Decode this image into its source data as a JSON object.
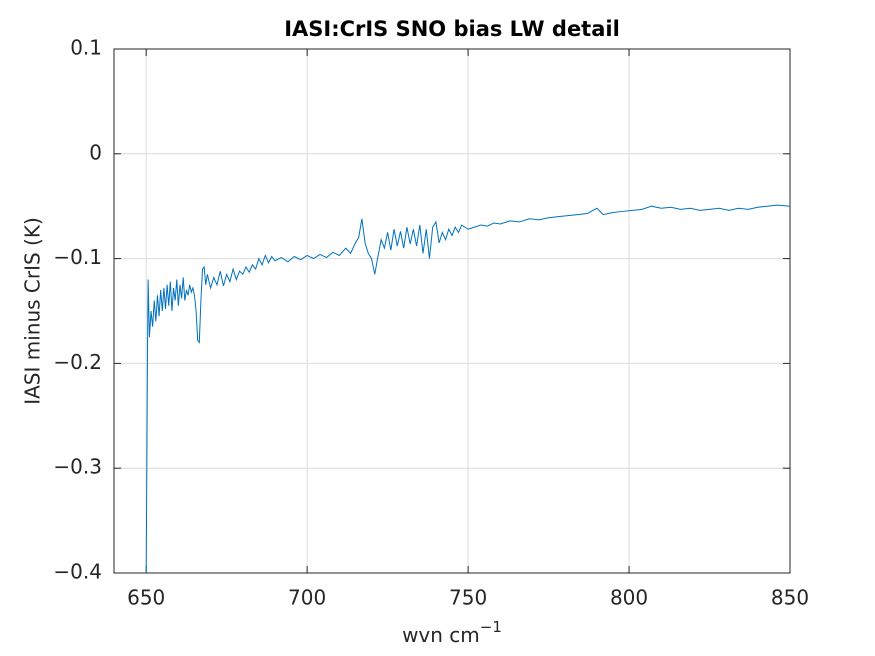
{
  "chart_data": {
    "type": "line",
    "title": "IASI:CrIS SNO bias LW detail",
    "xlabel": "wvn cm",
    "xlabel_superscript": "−1",
    "ylabel": "IASI minus CrIS (K)",
    "xlim": [
      640,
      850
    ],
    "ylim": [
      -0.4,
      0.1
    ],
    "xticks": [
      650,
      700,
      750,
      800,
      850
    ],
    "yticks": [
      {
        "value": -0.4,
        "label": "−0.4"
      },
      {
        "value": -0.3,
        "label": "−0.3"
      },
      {
        "value": -0.2,
        "label": "−0.2"
      },
      {
        "value": -0.1,
        "label": "−0.1"
      },
      0,
      0.1
    ],
    "grid": true,
    "series": [
      {
        "color": "#0072bd",
        "x": [
          650.0,
          650.2,
          650.4,
          650.6,
          651.0,
          651.5,
          652.0,
          652.5,
          653.0,
          653.5,
          654.0,
          654.5,
          655.0,
          655.5,
          656.0,
          656.5,
          657.0,
          657.5,
          658.0,
          658.5,
          659.0,
          659.5,
          660.0,
          660.5,
          661.0,
          661.5,
          662.0,
          662.5,
          663.0,
          663.5,
          664.0,
          664.5,
          665.0,
          665.5,
          666.0,
          666.5,
          667.0,
          667.5,
          668.0,
          668.5,
          669.0,
          670.0,
          671.0,
          672.0,
          673.0,
          674.0,
          675.0,
          676.0,
          677.0,
          678.0,
          679.0,
          680.0,
          681.0,
          682.0,
          683.0,
          684.0,
          685.0,
          686.0,
          687.0,
          688.0,
          689.0,
          690.0,
          692.0,
          694.0,
          696.0,
          698.0,
          700.0,
          702.0,
          704.0,
          706.0,
          708.0,
          710.0,
          712.0,
          713.5,
          715.0,
          716.0,
          717.0,
          718.0,
          719.0,
          720.0,
          721.0,
          722.0,
          723.0,
          724.0,
          725.0,
          726.0,
          727.0,
          728.0,
          729.0,
          730.0,
          731.0,
          732.0,
          733.0,
          734.0,
          735.0,
          736.0,
          737.0,
          738.0,
          739.0,
          740.0,
          741.0,
          742.0,
          743.0,
          744.0,
          745.0,
          746.0,
          747.0,
          748.0,
          750.0,
          752.0,
          754.0,
          756.0,
          758.0,
          760.0,
          763.0,
          766.0,
          769.0,
          772.0,
          775.0,
          778.0,
          781.0,
          784.0,
          787.0,
          790.0,
          792.0,
          795.0,
          798.0,
          801.0,
          804.0,
          807.0,
          810.0,
          813.0,
          816.0,
          819.0,
          822.0,
          825.0,
          828.0,
          831.0,
          834.0,
          837.0,
          840.0,
          843.0,
          846.0,
          850.0
        ],
        "values": [
          -0.4,
          -0.3,
          -0.19,
          -0.12,
          -0.175,
          -0.15,
          -0.165,
          -0.14,
          -0.16,
          -0.135,
          -0.155,
          -0.13,
          -0.15,
          -0.128,
          -0.148,
          -0.125,
          -0.145,
          -0.122,
          -0.15,
          -0.128,
          -0.14,
          -0.12,
          -0.145,
          -0.125,
          -0.138,
          -0.118,
          -0.14,
          -0.13,
          -0.135,
          -0.125,
          -0.132,
          -0.128,
          -0.135,
          -0.15,
          -0.178,
          -0.18,
          -0.14,
          -0.11,
          -0.108,
          -0.125,
          -0.115,
          -0.128,
          -0.118,
          -0.125,
          -0.112,
          -0.126,
          -0.115,
          -0.122,
          -0.11,
          -0.12,
          -0.112,
          -0.115,
          -0.108,
          -0.113,
          -0.106,
          -0.11,
          -0.1,
          -0.106,
          -0.097,
          -0.104,
          -0.098,
          -0.102,
          -0.099,
          -0.103,
          -0.098,
          -0.101,
          -0.097,
          -0.1,
          -0.096,
          -0.099,
          -0.094,
          -0.097,
          -0.09,
          -0.095,
          -0.085,
          -0.08,
          -0.062,
          -0.085,
          -0.095,
          -0.1,
          -0.115,
          -0.098,
          -0.082,
          -0.09,
          -0.075,
          -0.092,
          -0.072,
          -0.088,
          -0.074,
          -0.09,
          -0.07,
          -0.086,
          -0.072,
          -0.088,
          -0.068,
          -0.095,
          -0.072,
          -0.1,
          -0.07,
          -0.065,
          -0.085,
          -0.075,
          -0.082,
          -0.072,
          -0.078,
          -0.07,
          -0.075,
          -0.068,
          -0.072,
          -0.07,
          -0.068,
          -0.069,
          -0.066,
          -0.067,
          -0.064,
          -0.065,
          -0.062,
          -0.063,
          -0.061,
          -0.06,
          -0.059,
          -0.058,
          -0.057,
          -0.052,
          -0.058,
          -0.056,
          -0.055,
          -0.054,
          -0.053,
          -0.05,
          -0.052,
          -0.051,
          -0.053,
          -0.052,
          -0.054,
          -0.053,
          -0.052,
          -0.054,
          -0.052,
          -0.053,
          -0.051,
          -0.05,
          -0.049,
          -0.05
        ]
      }
    ]
  }
}
